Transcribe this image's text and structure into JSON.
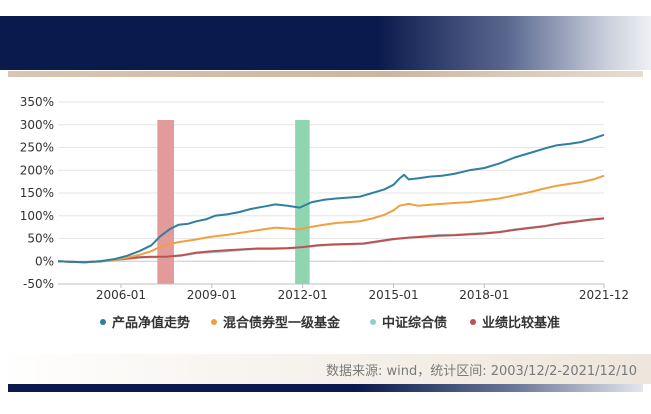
{
  "source_note": "数据来源: wind，统计区间: 2003/12/2-2021/12/10",
  "chart_data": {
    "type": "line",
    "title": "",
    "xlabel": "",
    "ylabel": "",
    "x_start": 2003.92,
    "x_end": 2021.95,
    "ylim": [
      -50,
      350
    ],
    "y_ticks": [
      -50,
      0,
      50,
      100,
      150,
      200,
      250,
      300,
      350
    ],
    "y_tick_labels": [
      "-50%",
      "0%",
      "50%",
      "100%",
      "150%",
      "200%",
      "250%",
      "300%",
      "350%"
    ],
    "x_ticks": [
      2006.0,
      2009.0,
      2012.0,
      2015.0,
      2018.0,
      2021.95
    ],
    "x_tick_labels": [
      "2006-01",
      "2009-01",
      "2012-01",
      "2015-01",
      "2018-01",
      "2021-12"
    ],
    "grid": "horizontal",
    "legend_position": "bottom",
    "shaded_periods": [
      {
        "start": 2007.2,
        "end": 2007.75,
        "color": "#e39a9a"
      },
      {
        "start": 2011.75,
        "end": 2012.23,
        "color": "#8fd6b0"
      }
    ],
    "series": [
      {
        "name": "产品净值走势",
        "color": "#2f7fa0",
        "x": [
          2003.92,
          2004.3,
          2004.8,
          2005.3,
          2005.8,
          2006.2,
          2006.6,
          2007.0,
          2007.3,
          2007.6,
          2007.9,
          2008.2,
          2008.5,
          2008.8,
          2009.1,
          2009.5,
          2009.9,
          2010.3,
          2010.7,
          2011.1,
          2011.5,
          2011.9,
          2012.3,
          2012.7,
          2013.1,
          2013.5,
          2013.9,
          2014.3,
          2014.7,
          2015.0,
          2015.2,
          2015.35,
          2015.5,
          2015.8,
          2016.2,
          2016.6,
          2017.0,
          2017.5,
          2018.0,
          2018.5,
          2019.0,
          2019.5,
          2020.0,
          2020.4,
          2020.8,
          2021.2,
          2021.6,
          2021.95
        ],
        "y": [
          0,
          -1,
          -2,
          0,
          5,
          12,
          22,
          35,
          55,
          70,
          80,
          82,
          88,
          92,
          100,
          103,
          108,
          115,
          120,
          125,
          122,
          118,
          130,
          135,
          138,
          140,
          142,
          150,
          158,
          168,
          182,
          190,
          180,
          182,
          186,
          188,
          192,
          200,
          205,
          215,
          228,
          238,
          248,
          255,
          258,
          262,
          270,
          278
        ]
      },
      {
        "name": "混合债券型一级基金",
        "color": "#f0a040",
        "x": [
          2003.92,
          2004.3,
          2004.8,
          2005.3,
          2005.8,
          2006.2,
          2006.6,
          2007.0,
          2007.3,
          2007.6,
          2007.9,
          2008.2,
          2008.5,
          2008.8,
          2009.1,
          2009.5,
          2009.9,
          2010.3,
          2010.7,
          2011.1,
          2011.5,
          2011.9,
          2012.3,
          2012.7,
          2013.1,
          2013.5,
          2013.9,
          2014.3,
          2014.7,
          2015.0,
          2015.2,
          2015.5,
          2015.8,
          2016.2,
          2016.6,
          2017.0,
          2017.5,
          2018.0,
          2018.5,
          2019.0,
          2019.5,
          2020.0,
          2020.4,
          2020.8,
          2021.2,
          2021.6,
          2021.95
        ],
        "y": [
          0,
          -1,
          -2,
          0,
          3,
          8,
          14,
          22,
          32,
          38,
          42,
          45,
          48,
          52,
          55,
          58,
          62,
          66,
          70,
          74,
          72,
          70,
          76,
          80,
          84,
          86,
          88,
          94,
          102,
          112,
          122,
          126,
          122,
          124,
          126,
          128,
          130,
          134,
          138,
          145,
          152,
          160,
          166,
          170,
          174,
          180,
          188
        ]
      },
      {
        "name": "中证综合债",
        "color": "#8fd0cc",
        "x": [
          2003.92,
          2004.3,
          2004.8,
          2005.3,
          2005.8,
          2006.2,
          2006.6,
          2007.0,
          2007.5,
          2008.0,
          2008.5,
          2009.0,
          2009.5,
          2010.0,
          2010.5,
          2011.0,
          2011.5,
          2012.0,
          2012.5,
          2013.0,
          2013.5,
          2014.0,
          2014.5,
          2015.0,
          2015.5,
          2016.0,
          2016.5,
          2017.0,
          2017.5,
          2018.0,
          2018.5,
          2019.0,
          2019.5,
          2020.0,
          2020.5,
          2021.0,
          2021.5,
          2021.95
        ],
        "y": [
          0,
          -1,
          -2,
          -1,
          2,
          5,
          8,
          9,
          9,
          12,
          18,
          20,
          22,
          25,
          27,
          27,
          28,
          30,
          34,
          36,
          37,
          38,
          43,
          48,
          52,
          55,
          58,
          58,
          60,
          62,
          65,
          70,
          74,
          78,
          84,
          88,
          92,
          95
        ]
      },
      {
        "name": "业绩比较基准",
        "color": "#c05050",
        "x": [
          2003.92,
          2004.3,
          2004.8,
          2005.3,
          2005.8,
          2006.2,
          2006.6,
          2007.0,
          2007.5,
          2008.0,
          2008.5,
          2009.0,
          2009.5,
          2010.0,
          2010.5,
          2011.0,
          2011.5,
          2012.0,
          2012.5,
          2013.0,
          2013.5,
          2014.0,
          2014.5,
          2015.0,
          2015.5,
          2016.0,
          2016.5,
          2017.0,
          2017.5,
          2018.0,
          2018.5,
          2019.0,
          2019.5,
          2020.0,
          2020.5,
          2021.0,
          2021.5,
          2021.95
        ],
        "y": [
          0,
          -1,
          -2,
          0,
          3,
          6,
          9,
          10,
          10,
          13,
          19,
          22,
          24,
          26,
          28,
          28,
          29,
          31,
          35,
          37,
          38,
          39,
          44,
          49,
          52,
          54,
          56,
          57,
          59,
          61,
          64,
          69,
          73,
          77,
          83,
          87,
          91,
          94
        ]
      }
    ]
  }
}
